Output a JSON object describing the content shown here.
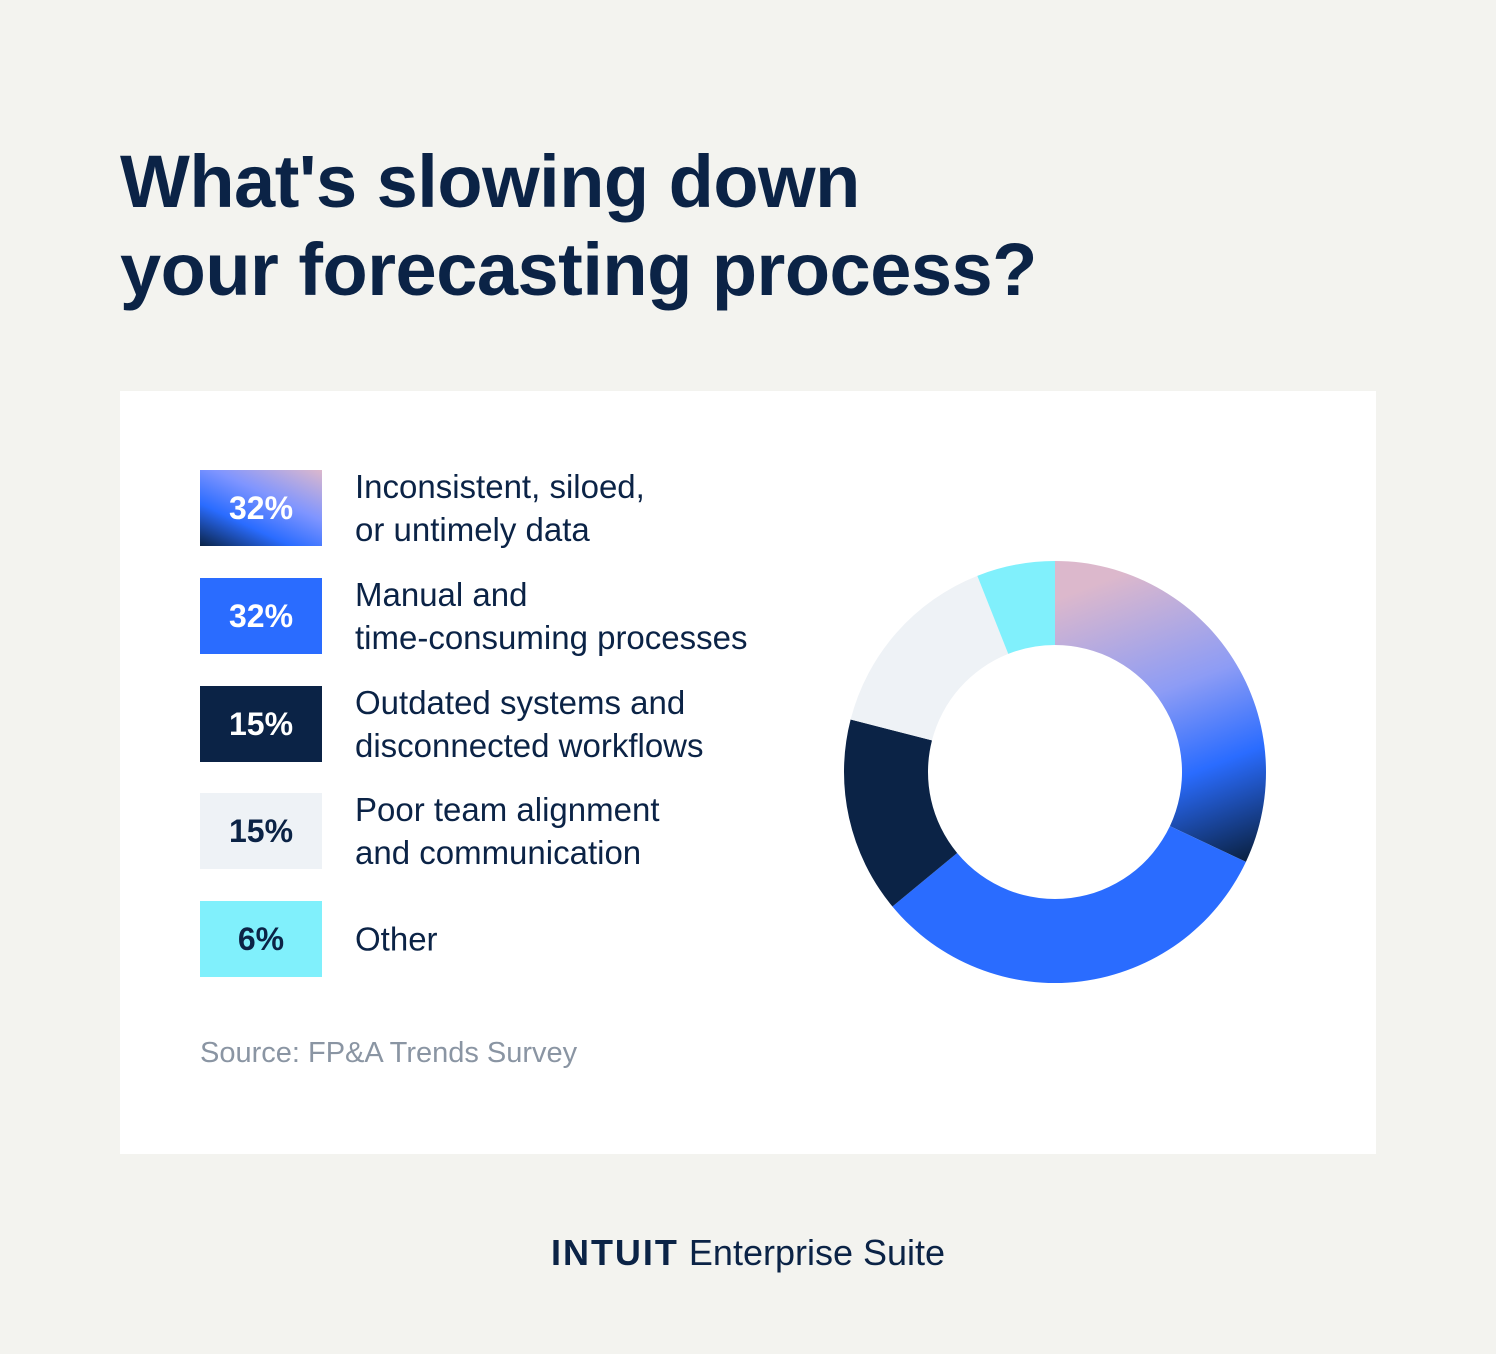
{
  "title_lines": [
    "What's slowing down",
    "your forecasting process?"
  ],
  "source": "Source: FP&A Trends Survey",
  "brand": {
    "logo": "INTUIT",
    "name": "Enterprise Suite"
  },
  "colors": {
    "navy": "#0b2346",
    "blue": "#2a6cff",
    "light_gray": "#eef2f6",
    "cyan": "#80f0fc",
    "pink": "#dcb8cc",
    "gradient_mid": "#5b8cff"
  },
  "legend": [
    {
      "pct": "32%",
      "lines": [
        "Inconsistent, siloed,",
        "or untimely data"
      ]
    },
    {
      "pct": "32%",
      "lines": [
        "Manual and",
        "time-consuming processes"
      ]
    },
    {
      "pct": "15%",
      "lines": [
        "Outdated systems and",
        "disconnected workflows"
      ]
    },
    {
      "pct": "15%",
      "lines": [
        "Poor team alignment",
        "and communication"
      ]
    },
    {
      "pct": "6%",
      "lines": [
        "Other"
      ]
    }
  ],
  "chart_data": {
    "type": "pie",
    "variant": "donut",
    "categories": [
      "Inconsistent, siloed, or untimely data",
      "Manual and time-consuming processes",
      "Outdated systems and disconnected workflows",
      "Poor team alignment and communication",
      "Other"
    ],
    "values": [
      32,
      32,
      15,
      15,
      6
    ],
    "unit": "%",
    "fills": [
      "gradient",
      "#2a6cff",
      "#0b2346",
      "#eef2f6",
      "#80f0fc"
    ],
    "legend": "left"
  }
}
